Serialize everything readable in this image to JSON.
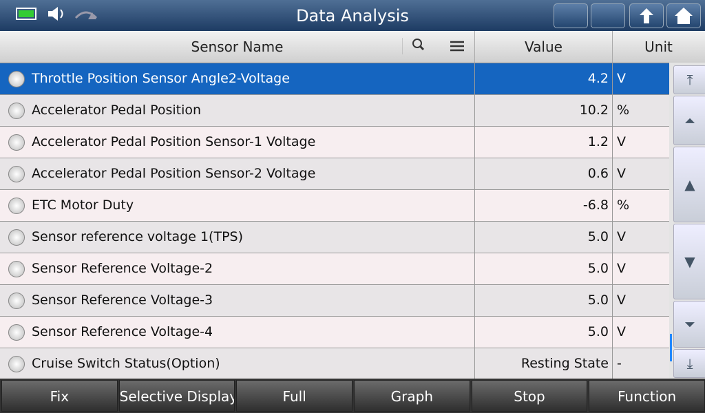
{
  "header": {
    "title": "Data Analysis"
  },
  "table": {
    "columns": [
      "Sensor Name",
      "Value",
      "Unit"
    ],
    "rows": [
      [
        "Throttle Position Sensor Angle2-Voltage",
        "4.2",
        "V"
      ],
      [
        "Accelerator Pedal Position",
        "10.2",
        "%"
      ],
      [
        "Accelerator Pedal Position Sensor-1 Voltage",
        "1.2",
        "V"
      ],
      [
        "Accelerator Pedal Position Sensor-2 Voltage",
        "0.6",
        "V"
      ],
      [
        "ETC Motor Duty",
        "-6.8",
        "%"
      ],
      [
        "Sensor reference voltage 1(TPS)",
        "5.0",
        "V"
      ],
      [
        "Sensor Reference Voltage-2",
        "5.0",
        "V"
      ],
      [
        "Sensor Reference Voltage-3",
        "5.0",
        "V"
      ],
      [
        "Sensor Reference Voltage-4",
        "5.0",
        "V"
      ],
      [
        "Cruise Switch Status(Option)",
        "Resting State",
        "-"
      ]
    ]
  },
  "buttons": [
    "Fix",
    "Selective Display",
    "Full",
    "Graph",
    "Stop",
    "Function"
  ]
}
